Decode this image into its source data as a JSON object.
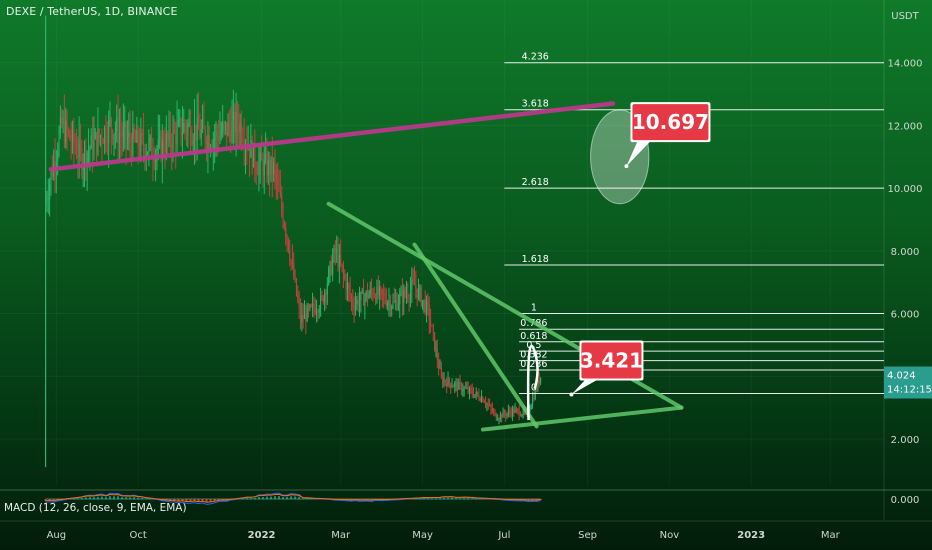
{
  "symbol_title": "DEXE / TetherUS, 1D, BINANCE",
  "colors": {
    "up": "#2db36b",
    "down": "#c0433f",
    "trendline_top": "#b8398a",
    "triangle": "#5fc86a",
    "fib_line": "#ffffff",
    "callout": "#e63946"
  },
  "chart_data": {
    "type": "candlestick",
    "title": "DEXE / TetherUS, 1D, BINANCE",
    "currency": "USDT",
    "y_ticks": [
      "2.000",
      "4.000",
      "6.000",
      "8.000",
      "10.000",
      "12.000",
      "14.000"
    ],
    "y_tick_values": [
      2,
      4,
      6,
      8,
      10,
      12,
      14
    ],
    "ylim": [
      0.5,
      16
    ],
    "x_ticks": [
      "Aug",
      "Oct",
      "2022",
      "Mar",
      "May",
      "Jul",
      "Sep",
      "Nov",
      "2023",
      "Mar"
    ],
    "x_tick_dates": [
      "2021-08-01",
      "2021-10-01",
      "2022-01-01",
      "2022-03-01",
      "2022-05-01",
      "2022-07-01",
      "2022-09-01",
      "2022-11-01",
      "2023-01-01",
      "2023-03-01"
    ],
    "xlim": [
      "2021-06-20",
      "2023-04-10"
    ],
    "price_path": [
      [
        "2021-07-24",
        9.6
      ],
      [
        "2021-08-05",
        12.0
      ],
      [
        "2021-08-20",
        11.0
      ],
      [
        "2021-09-10",
        12.0
      ],
      [
        "2021-09-25",
        11.5
      ],
      [
        "2021-10-15",
        11.2
      ],
      [
        "2021-11-05",
        12.0
      ],
      [
        "2021-11-25",
        11.6
      ],
      [
        "2021-12-15",
        12.1
      ],
      [
        "2021-12-28",
        10.8
      ],
      [
        "2022-01-10",
        10.6
      ],
      [
        "2022-01-20",
        8.5
      ],
      [
        "2022-01-30",
        5.8
      ],
      [
        "2022-02-15",
        6.4
      ],
      [
        "2022-02-25",
        8.0
      ],
      [
        "2022-03-10",
        6.3
      ],
      [
        "2022-03-25",
        6.7
      ],
      [
        "2022-04-10",
        6.3
      ],
      [
        "2022-04-25",
        6.9
      ],
      [
        "2022-05-05",
        6.1
      ],
      [
        "2022-05-15",
        3.9
      ],
      [
        "2022-06-01",
        3.6
      ],
      [
        "2022-06-15",
        3.3
      ],
      [
        "2022-06-25",
        2.7
      ],
      [
        "2022-07-08",
        2.9
      ],
      [
        "2022-07-18",
        2.8
      ],
      [
        "2022-07-28",
        4.0
      ]
    ],
    "last_price": "4.024",
    "countdown": "14:12:15",
    "fib_levels": [
      {
        "label": "4.236",
        "value": 14.0
      },
      {
        "label": "3.618",
        "value": 12.5
      },
      {
        "label": "2.618",
        "value": 10.0
      },
      {
        "label": "1.618",
        "value": 7.55
      },
      {
        "label": "1",
        "value": 6.0
      },
      {
        "label": "0.786",
        "value": 5.5
      },
      {
        "label": "0.618",
        "value": 5.1
      },
      {
        "label": "0.5",
        "value": 4.8
      },
      {
        "label": "0.382",
        "value": 4.5
      },
      {
        "label": "0.236",
        "value": 4.2
      },
      {
        "label": "0",
        "value": 3.45
      }
    ],
    "trendlines": [
      {
        "name": "resistance",
        "from": [
          "2021-07-28",
          10.6
        ],
        "to": [
          "2022-09-20",
          12.7
        ]
      },
      {
        "name": "triangle-top",
        "from": [
          "2022-02-20",
          9.5
        ],
        "to": [
          "2022-11-10",
          3.0
        ]
      },
      {
        "name": "triangle-steep",
        "from": [
          "2022-04-25",
          8.2
        ],
        "to": [
          "2022-07-25",
          2.4
        ]
      },
      {
        "name": "triangle-bottom",
        "from": [
          "2022-06-15",
          2.3
        ],
        "to": [
          "2022-11-10",
          3.0
        ]
      }
    ],
    "target_ellipse": {
      "center": [
        "2022-09-25",
        11.0
      ],
      "low": 9.5,
      "high": 12.5
    },
    "callouts": [
      {
        "text": "10.697",
        "anchor": [
          "2022-09-30",
          10.7
        ]
      },
      {
        "text": "3.421",
        "anchor": [
          "2022-08-20",
          3.42
        ]
      }
    ],
    "indicator": {
      "label": "MACD (12, 26, close, 9, EMA, EMA)",
      "zero_tick": "0.000"
    }
  }
}
